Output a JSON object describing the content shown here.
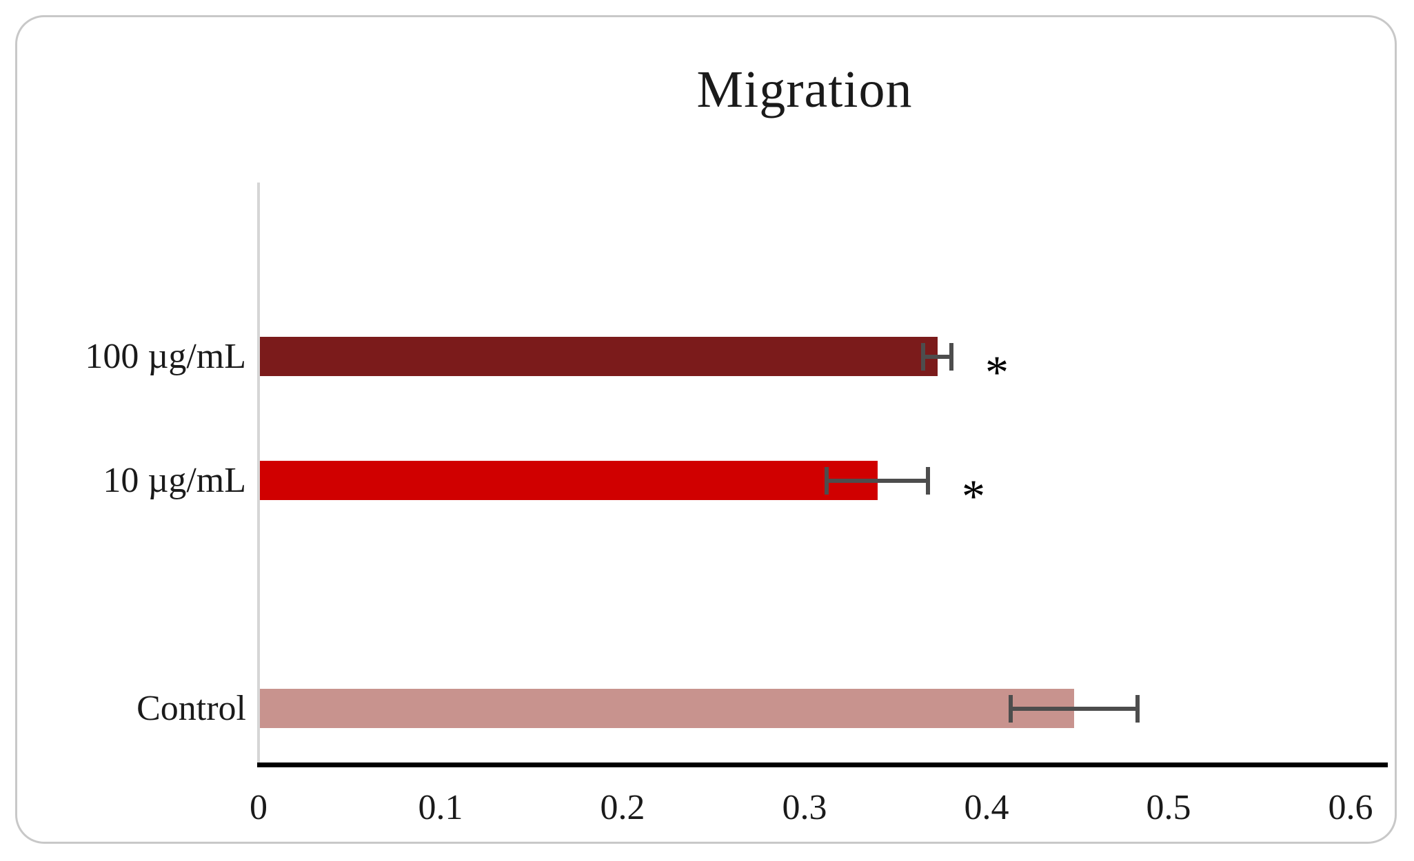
{
  "chart_data": {
    "type": "bar",
    "orientation": "horizontal",
    "title": "Migration",
    "categories": [
      "100 µg/mL",
      "10 µg/mL",
      "Control"
    ],
    "values": [
      0.373,
      0.34,
      0.448
    ],
    "error_bars": [
      0.009,
      0.029,
      0.036
    ],
    "significance": [
      "*",
      "*",
      ""
    ],
    "bar_colors": [
      "#7b1b1b",
      "#d00000",
      "#c8938e"
    ],
    "xlim": [
      0,
      0.6
    ],
    "x_ticks": [
      "0",
      "0.1",
      "0.2",
      "0.3",
      "0.4",
      "0.5",
      "0.6"
    ],
    "x_tick_values": [
      0,
      0.1,
      0.2,
      0.3,
      0.4,
      0.5,
      0.6
    ],
    "xlabel": "",
    "ylabel": "",
    "grid": "off",
    "legend": "none",
    "error_bar_color": "#4d4d4d",
    "axis_line_color": "#000000",
    "y_axis_line_color": "#d6d6d6",
    "frame_border_color": "#c8c8c8",
    "background_color": "#ffffff"
  }
}
